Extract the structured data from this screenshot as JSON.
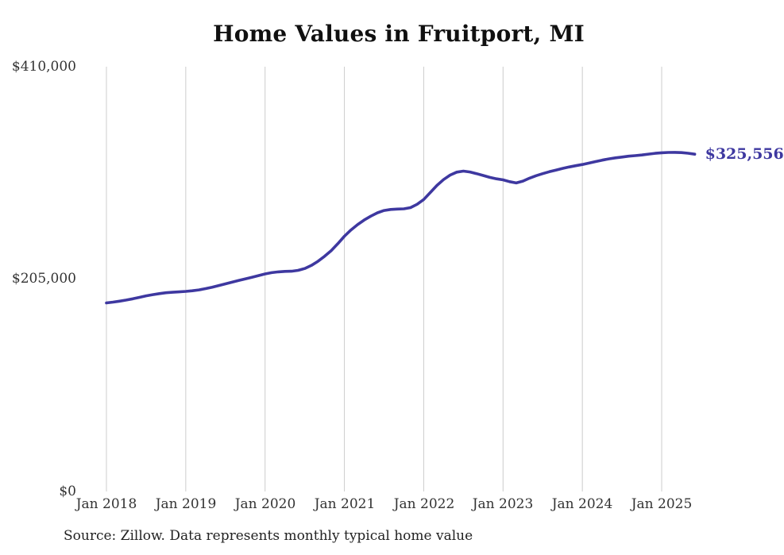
{
  "title": "Home Values in Fruitport, MI",
  "source_note": "Source: Zillow. Data represents monthly typical home value",
  "end_label": "$325,556",
  "colors": {
    "line": "#3e38a0",
    "end_label_text": "#3e38a0",
    "grid": "#cccccc",
    "title_text": "#101010",
    "axis_text": "#333333",
    "source_text": "#222222",
    "background": "#ffffff"
  },
  "chart_data": {
    "type": "line",
    "title": "Home Values in Fruitport, MI",
    "xlabel": "",
    "ylabel": "",
    "x_start": "Jan 2018",
    "x_interval": "monthly",
    "x_tick_labels": [
      "Jan 2018",
      "Jan 2019",
      "Jan 2020",
      "Jan 2021",
      "Jan 2022",
      "Jan 2023",
      "Jan 2024",
      "Jan 2025"
    ],
    "y_tick_labels": [
      "$0",
      "$205,000",
      "$410,000"
    ],
    "y_ticks": [
      0,
      205000,
      410000
    ],
    "ylim": [
      0,
      410000
    ],
    "grid": "vertical-only",
    "legend": "none",
    "final_value": 325556,
    "series": [
      {
        "name": "Typical home value",
        "values": [
          182000,
          182800,
          183700,
          184800,
          186000,
          187400,
          188800,
          190000,
          191000,
          191800,
          192300,
          192700,
          193100,
          193700,
          194600,
          195800,
          197200,
          198800,
          200400,
          202000,
          203600,
          205200,
          206800,
          208400,
          210000,
          211200,
          212000,
          212400,
          212600,
          213400,
          215200,
          218200,
          222200,
          227000,
          232400,
          239200,
          246400,
          252400,
          257600,
          262000,
          265800,
          269000,
          271200,
          272200,
          272600,
          272800,
          274000,
          277200,
          281800,
          288600,
          295400,
          301000,
          305400,
          308200,
          309200,
          308400,
          306800,
          305000,
          303200,
          301800,
          300800,
          299000,
          297800,
          299600,
          302400,
          304800,
          306800,
          308600,
          310200,
          311800,
          313200,
          314400,
          315600,
          317000,
          318400,
          319800,
          321000,
          322000,
          322800,
          323600,
          324200,
          324800,
          325600,
          326400,
          326900,
          327200,
          327300,
          327100,
          326500,
          325556
        ]
      }
    ]
  }
}
